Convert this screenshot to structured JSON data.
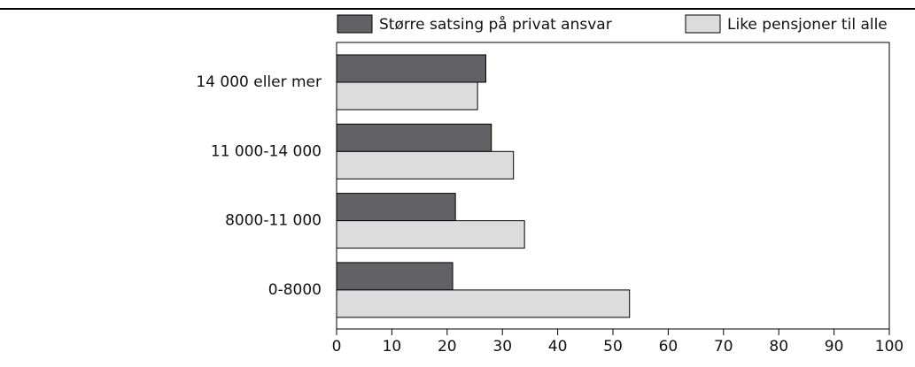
{
  "chart_data": {
    "type": "barh",
    "categories": [
      "14 000 eller mer",
      "11 000-14 000",
      "8000-11 000",
      "0-8000"
    ],
    "series": [
      {
        "name": "Større satsing på privat ansvar",
        "color": "#626166",
        "values": [
          27,
          28,
          21.5,
          21
        ]
      },
      {
        "name": "Like pensjoner til alle",
        "color": "#dcdcdc",
        "values": [
          25.5,
          32,
          34,
          53
        ]
      }
    ],
    "xlim": [
      0,
      100
    ],
    "xticks": [
      0,
      10,
      20,
      30,
      40,
      50,
      60,
      70,
      80,
      90,
      100
    ],
    "grid": false
  }
}
